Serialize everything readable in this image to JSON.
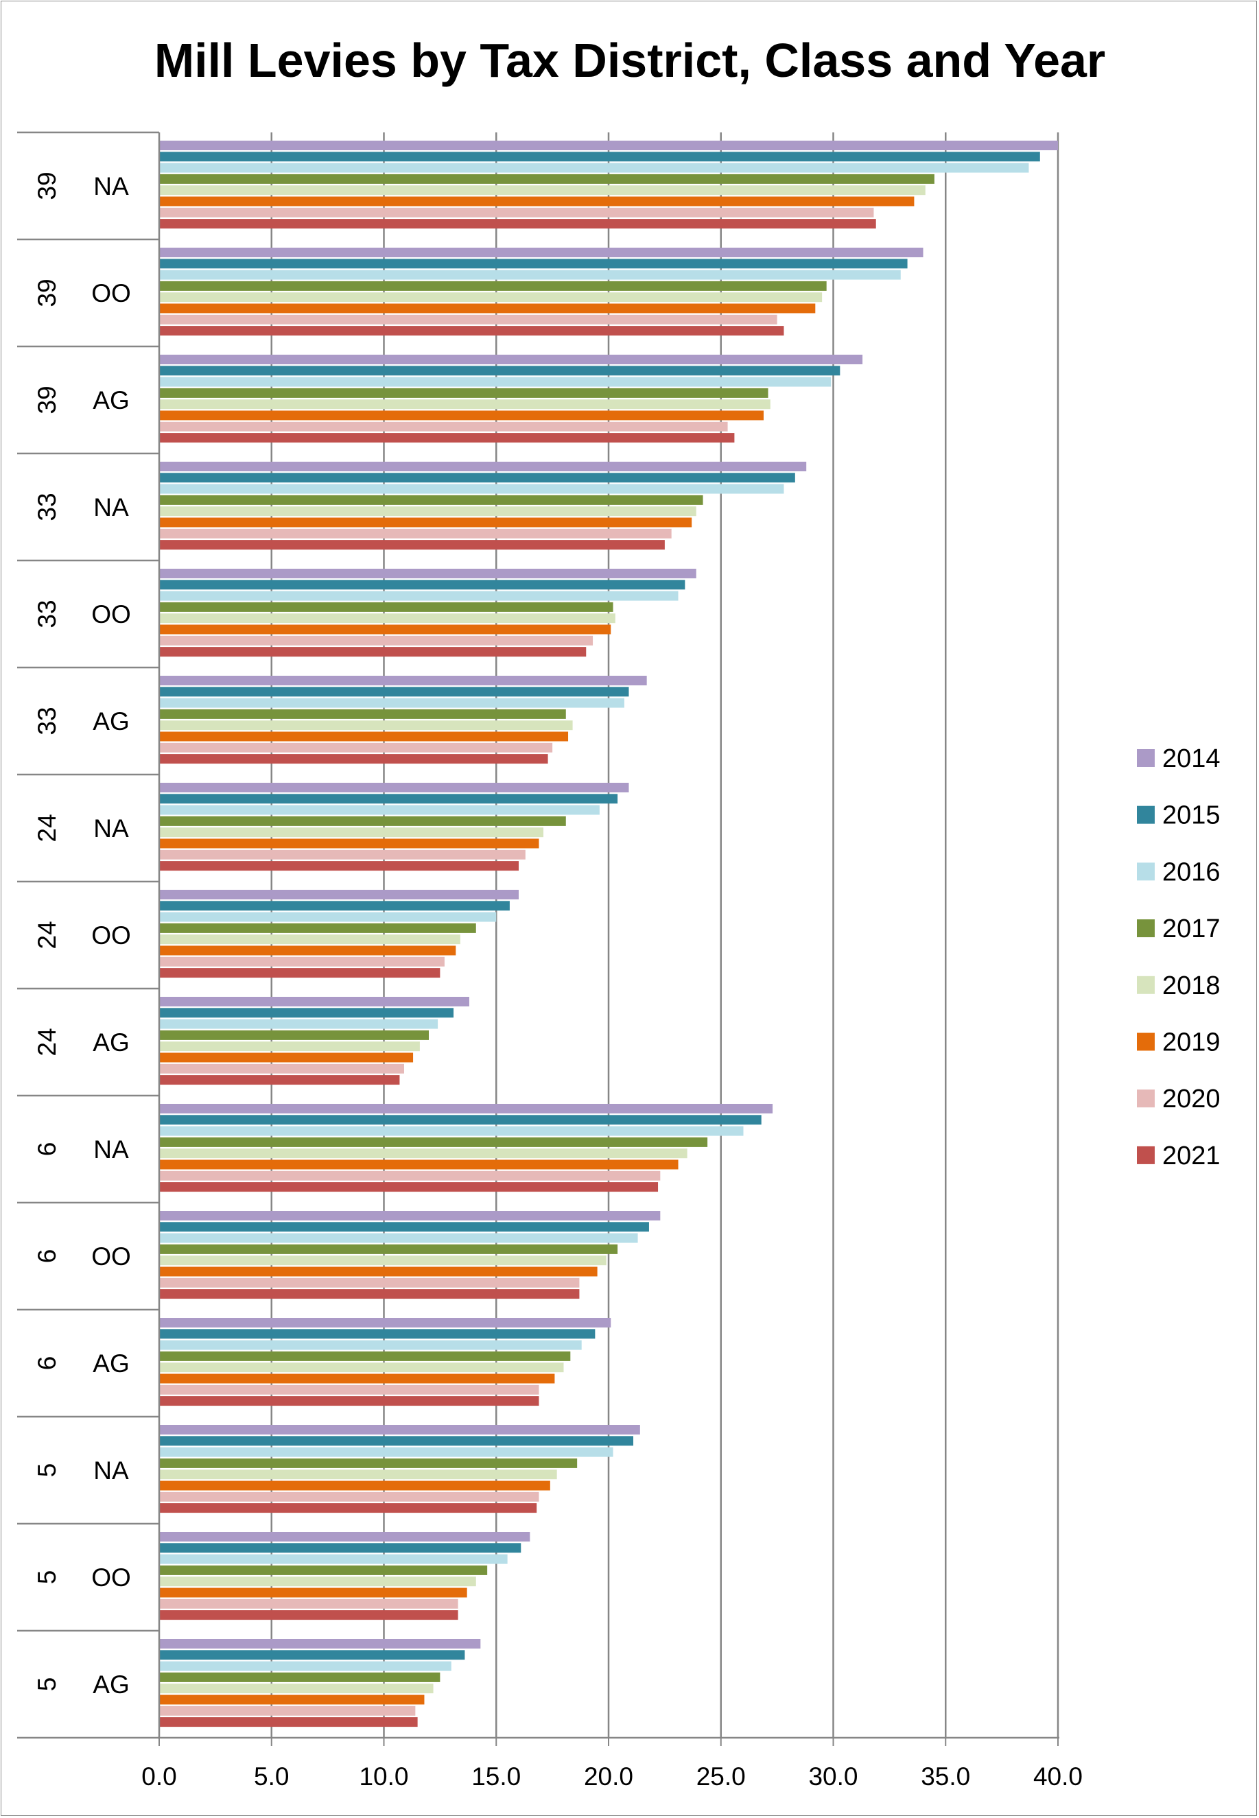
{
  "chart_data": {
    "type": "bar",
    "orientation": "horizontal",
    "title": "Mill Levies by Tax District, Class and Year",
    "xlabel": "",
    "ylabel": "",
    "xlim": [
      0,
      40
    ],
    "x_ticks": [
      "0.0",
      "5.0",
      "10.0",
      "15.0",
      "20.0",
      "25.0",
      "30.0",
      "35.0",
      "40.0"
    ],
    "grid": "vertical major gridlines",
    "legend_position": "right",
    "categories": [
      {
        "district": "39",
        "class": "NA"
      },
      {
        "district": "39",
        "class": "OO"
      },
      {
        "district": "39",
        "class": "AG"
      },
      {
        "district": "33",
        "class": "NA"
      },
      {
        "district": "33",
        "class": "OO"
      },
      {
        "district": "33",
        "class": "AG"
      },
      {
        "district": "24",
        "class": "NA"
      },
      {
        "district": "24",
        "class": "OO"
      },
      {
        "district": "24",
        "class": "AG"
      },
      {
        "district": "6",
        "class": "NA"
      },
      {
        "district": "6",
        "class": "OO"
      },
      {
        "district": "6",
        "class": "AG"
      },
      {
        "district": "5",
        "class": "NA"
      },
      {
        "district": "5",
        "class": "OO"
      },
      {
        "district": "5",
        "class": "AG"
      }
    ],
    "series": [
      {
        "name": "2014",
        "color": "#ab9ac7",
        "values": [
          40.0,
          34.0,
          31.3,
          28.8,
          23.9,
          21.7,
          20.9,
          16.0,
          13.8,
          27.3,
          22.3,
          20.1,
          21.4,
          16.5,
          14.3
        ]
      },
      {
        "name": "2015",
        "color": "#31859c",
        "values": [
          39.2,
          33.3,
          30.3,
          28.3,
          23.4,
          20.9,
          20.4,
          15.6,
          13.1,
          26.8,
          21.8,
          19.4,
          21.1,
          16.1,
          13.6
        ]
      },
      {
        "name": "2016",
        "color": "#b7dee8",
        "values": [
          38.7,
          33.0,
          29.9,
          27.8,
          23.1,
          20.7,
          19.6,
          15.0,
          12.4,
          26.0,
          21.3,
          18.8,
          20.2,
          15.5,
          13.0
        ]
      },
      {
        "name": "2017",
        "color": "#77933c",
        "values": [
          34.5,
          29.7,
          27.1,
          24.2,
          20.2,
          18.1,
          18.1,
          14.1,
          12.0,
          24.4,
          20.4,
          18.3,
          18.6,
          14.6,
          12.5
        ]
      },
      {
        "name": "2018",
        "color": "#d7e4bd",
        "values": [
          34.1,
          29.5,
          27.2,
          23.9,
          20.3,
          18.4,
          17.1,
          13.4,
          11.6,
          23.5,
          19.9,
          18.0,
          17.7,
          14.1,
          12.2
        ]
      },
      {
        "name": "2019",
        "color": "#e46c0a",
        "values": [
          33.6,
          29.2,
          26.9,
          23.7,
          20.1,
          18.2,
          16.9,
          13.2,
          11.3,
          23.1,
          19.5,
          17.6,
          17.4,
          13.7,
          11.8
        ]
      },
      {
        "name": "2020",
        "color": "#e6b9b8",
        "values": [
          31.8,
          27.5,
          25.3,
          22.8,
          19.3,
          17.5,
          16.3,
          12.7,
          10.9,
          22.3,
          18.7,
          16.9,
          16.9,
          13.3,
          11.4
        ]
      },
      {
        "name": "2021",
        "color": "#c0504d",
        "values": [
          31.9,
          27.8,
          25.6,
          22.5,
          19.0,
          17.3,
          16.0,
          12.5,
          10.7,
          22.2,
          18.7,
          16.9,
          16.8,
          13.3,
          11.5
        ]
      }
    ]
  }
}
